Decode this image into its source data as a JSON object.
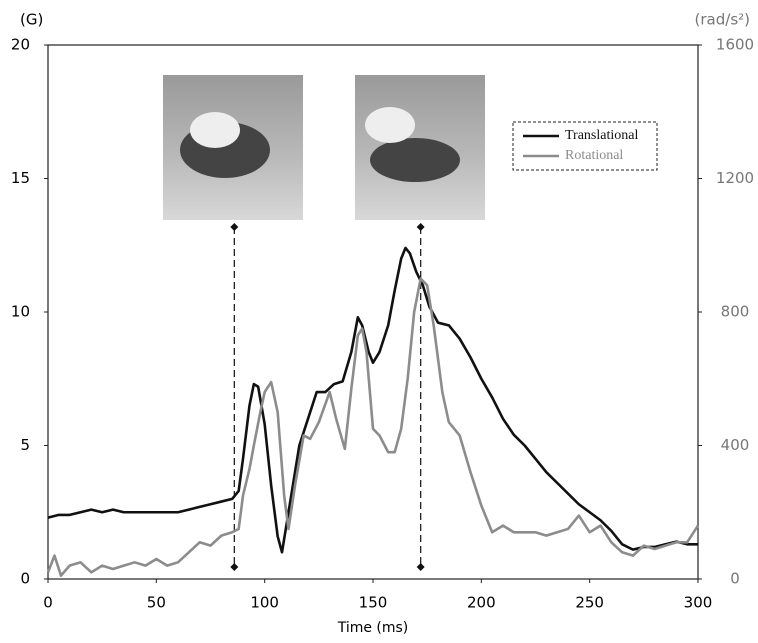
{
  "chart_data": {
    "type": "line",
    "xlabel": "Time (ms)",
    "ylabel": "(G)",
    "y2label": "(rad/s²)",
    "xlim": [
      0,
      300
    ],
    "xticks": [
      0,
      50,
      100,
      150,
      200,
      250,
      300
    ],
    "ylim": [
      0,
      20
    ],
    "yticks": [
      0,
      5,
      10,
      15,
      20
    ],
    "y2lim": [
      0,
      1600
    ],
    "y2ticks": [
      0,
      400,
      800,
      1200,
      1600
    ],
    "vlines": [
      86,
      172
    ],
    "legend": "upper right",
    "series": [
      {
        "name": "Translational",
        "color": "#111111",
        "axis": "y",
        "x": [
          0,
          5,
          10,
          15,
          20,
          25,
          30,
          35,
          40,
          45,
          50,
          55,
          60,
          65,
          70,
          75,
          80,
          85,
          88,
          90,
          93,
          95,
          97,
          100,
          103,
          106,
          108,
          110,
          113,
          116,
          120,
          124,
          128,
          132,
          136,
          140,
          143,
          145,
          148,
          150,
          153,
          157,
          160,
          163,
          165,
          167,
          170,
          173,
          176,
          180,
          185,
          190,
          195,
          200,
          205,
          210,
          215,
          220,
          225,
          230,
          235,
          240,
          245,
          250,
          255,
          260,
          265,
          270,
          275,
          280,
          285,
          290,
          295,
          300
        ],
        "values": [
          2.3,
          2.4,
          2.4,
          2.5,
          2.6,
          2.5,
          2.6,
          2.5,
          2.5,
          2.5,
          2.5,
          2.5,
          2.5,
          2.6,
          2.7,
          2.8,
          2.9,
          3.0,
          3.3,
          4.5,
          6.5,
          7.3,
          7.2,
          5.8,
          3.5,
          1.6,
          1.0,
          2.0,
          3.5,
          5.0,
          6.0,
          7.0,
          7.0,
          7.3,
          7.4,
          8.5,
          9.8,
          9.5,
          8.5,
          8.1,
          8.5,
          9.5,
          10.8,
          12.0,
          12.4,
          12.2,
          11.5,
          11.0,
          10.2,
          9.6,
          9.5,
          9.0,
          8.3,
          7.5,
          6.8,
          6.0,
          5.4,
          5.0,
          4.5,
          4.0,
          3.6,
          3.2,
          2.8,
          2.5,
          2.2,
          1.8,
          1.3,
          1.1,
          1.2,
          1.2,
          1.3,
          1.4,
          1.3,
          1.3
        ]
      },
      {
        "name": "Rotational",
        "color": "#8c8c8c",
        "axis": "y2",
        "x": [
          0,
          3,
          6,
          10,
          15,
          20,
          25,
          30,
          35,
          40,
          45,
          50,
          55,
          60,
          65,
          70,
          75,
          80,
          85,
          88,
          90,
          93,
          95,
          98,
          100,
          103,
          106,
          109,
          111,
          114,
          118,
          121,
          125,
          130,
          133,
          137,
          140,
          143,
          145,
          147,
          150,
          153,
          157,
          160,
          163,
          166,
          169,
          172,
          175,
          178,
          182,
          185,
          190,
          195,
          200,
          205,
          210,
          215,
          220,
          225,
          230,
          235,
          240,
          245,
          250,
          255,
          260,
          265,
          270,
          275,
          280,
          285,
          290,
          295,
          300
        ],
        "values": [
          20,
          70,
          10,
          40,
          50,
          20,
          40,
          30,
          40,
          50,
          40,
          60,
          40,
          50,
          80,
          110,
          100,
          130,
          140,
          150,
          250,
          330,
          400,
          500,
          560,
          590,
          500,
          250,
          150,
          280,
          430,
          420,
          470,
          560,
          480,
          390,
          570,
          730,
          750,
          680,
          450,
          430,
          380,
          380,
          450,
          600,
          800,
          900,
          880,
          760,
          560,
          470,
          430,
          320,
          220,
          140,
          160,
          140,
          140,
          140,
          130,
          140,
          150,
          190,
          140,
          160,
          110,
          80,
          70,
          100,
          90,
          100,
          110,
          110,
          160
        ]
      }
    ]
  }
}
